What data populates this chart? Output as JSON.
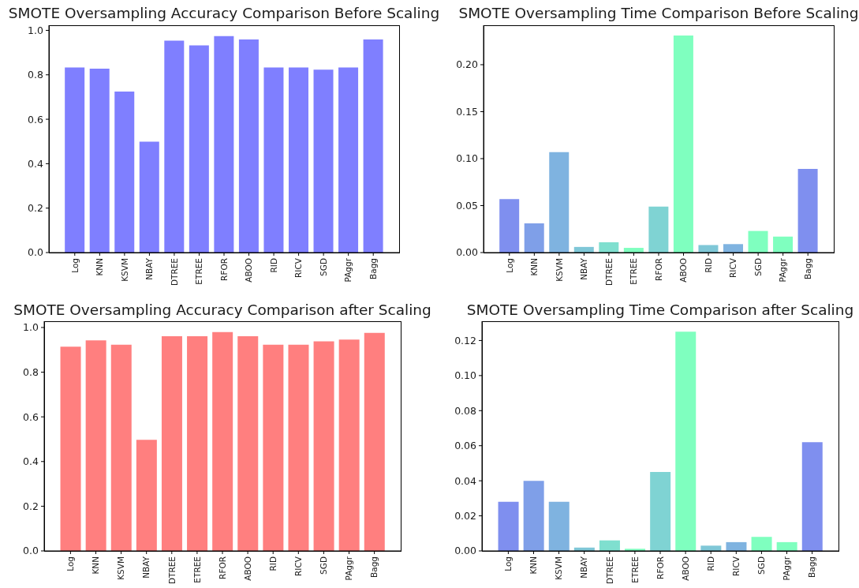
{
  "chart_data": [
    {
      "type": "bar",
      "title": "SMOTE Oversampling Accuracy Comparison Before Scaling",
      "categories": [
        "Log",
        "KNN",
        "KSVM",
        "NBAY",
        "DTREE",
        "ETREE",
        "RFOR",
        "ABOO",
        "RID",
        "RICV",
        "SGD",
        "PAggr",
        "Bagg"
      ],
      "values": [
        0.833,
        0.828,
        0.725,
        0.499,
        0.954,
        0.932,
        0.974,
        0.959,
        0.833,
        0.833,
        0.823,
        0.833,
        0.959
      ],
      "color": "#7f7fff",
      "ylim": [
        0,
        1.023
      ],
      "yticks": [
        {
          "value": 0,
          "label": "0.0"
        },
        0.2,
        0.4,
        0.6,
        0.8,
        {
          "value": 1,
          "label": "1.0"
        }
      ]
    },
    {
      "type": "bar",
      "title": "SMOTE Oversampling Time Comparison Before Scaling",
      "categories": [
        "Log",
        "KNN",
        "KSVM",
        "NBAY",
        "DTREE",
        "ETREE",
        "RFOR",
        "ABOO",
        "RID",
        "RICV",
        "SGD",
        "PAggr",
        "Bagg"
      ],
      "values": [
        0.057,
        0.031,
        0.107,
        0.006,
        0.011,
        0.005,
        0.049,
        0.231,
        0.008,
        0.009,
        0.023,
        0.017,
        0.089
      ],
      "colors": [
        "#7f8fef",
        "#7f9fe8",
        "#7fb3e0",
        "#7fc7d7",
        "#7fdfcf",
        "#7fffbf",
        "#7fd3d3",
        "#7fffbf",
        "#7fc7d7",
        "#7fb3e0",
        "#7fffbf",
        "#7fffbf",
        "#7f8fef"
      ],
      "ylim": [
        0,
        0.242
      ],
      "yticks": [
        {
          "value": 0,
          "label": "0.00"
        },
        0.05,
        {
          "value": 0.1,
          "label": "0.10"
        },
        0.15,
        {
          "value": 0.2,
          "label": "0.20"
        }
      ]
    },
    {
      "type": "bar",
      "title": "SMOTE Oversampling Accuracy Comparison after Scaling",
      "categories": [
        "Log",
        "KNN",
        "KSVM",
        "NBAY",
        "DTREE",
        "ETREE",
        "RFOR",
        "ABOO",
        "RID",
        "RICV",
        "SGD",
        "PAggr",
        "Bagg"
      ],
      "values": [
        0.914,
        0.942,
        0.923,
        0.497,
        0.961,
        0.961,
        0.979,
        0.961,
        0.923,
        0.923,
        0.938,
        0.946,
        0.976
      ],
      "color": "#ff7f7f",
      "ylim": [
        0,
        1.028
      ],
      "yticks": [
        {
          "value": 0,
          "label": "0.0"
        },
        0.2,
        0.4,
        0.6,
        0.8,
        {
          "value": 1,
          "label": "1.0"
        }
      ]
    },
    {
      "type": "bar",
      "title": "SMOTE Oversampling Time Comparison after Scaling",
      "categories": [
        "Log",
        "KNN",
        "KSVM",
        "NBAY",
        "DTREE",
        "ETREE",
        "RFOR",
        "ABOO",
        "RID",
        "RICV",
        "SGD",
        "PAggr",
        "Bagg"
      ],
      "values": [
        0.028,
        0.04,
        0.028,
        0.0019,
        0.006,
        0.0012,
        0.045,
        0.125,
        0.003,
        0.005,
        0.008,
        0.005,
        0.062
      ],
      "colors": [
        "#7f8fef",
        "#7f9fe8",
        "#7fb3e0",
        "#7fc7d7",
        "#7fdfcf",
        "#7fffbf",
        "#7fd3d3",
        "#7fffbf",
        "#7fc7d7",
        "#7fb3e0",
        "#7fffbf",
        "#7fffbf",
        "#7f8fef"
      ],
      "ylim": [
        0,
        0.131
      ],
      "yticks": [
        {
          "value": 0,
          "label": "0.00"
        },
        0.02,
        {
          "value": 0.04,
          "label": "0.04"
        },
        0.06,
        {
          "value": 0.08,
          "label": "0.08"
        },
        {
          "value": 0.1,
          "label": "0.10"
        },
        0.12
      ]
    }
  ]
}
